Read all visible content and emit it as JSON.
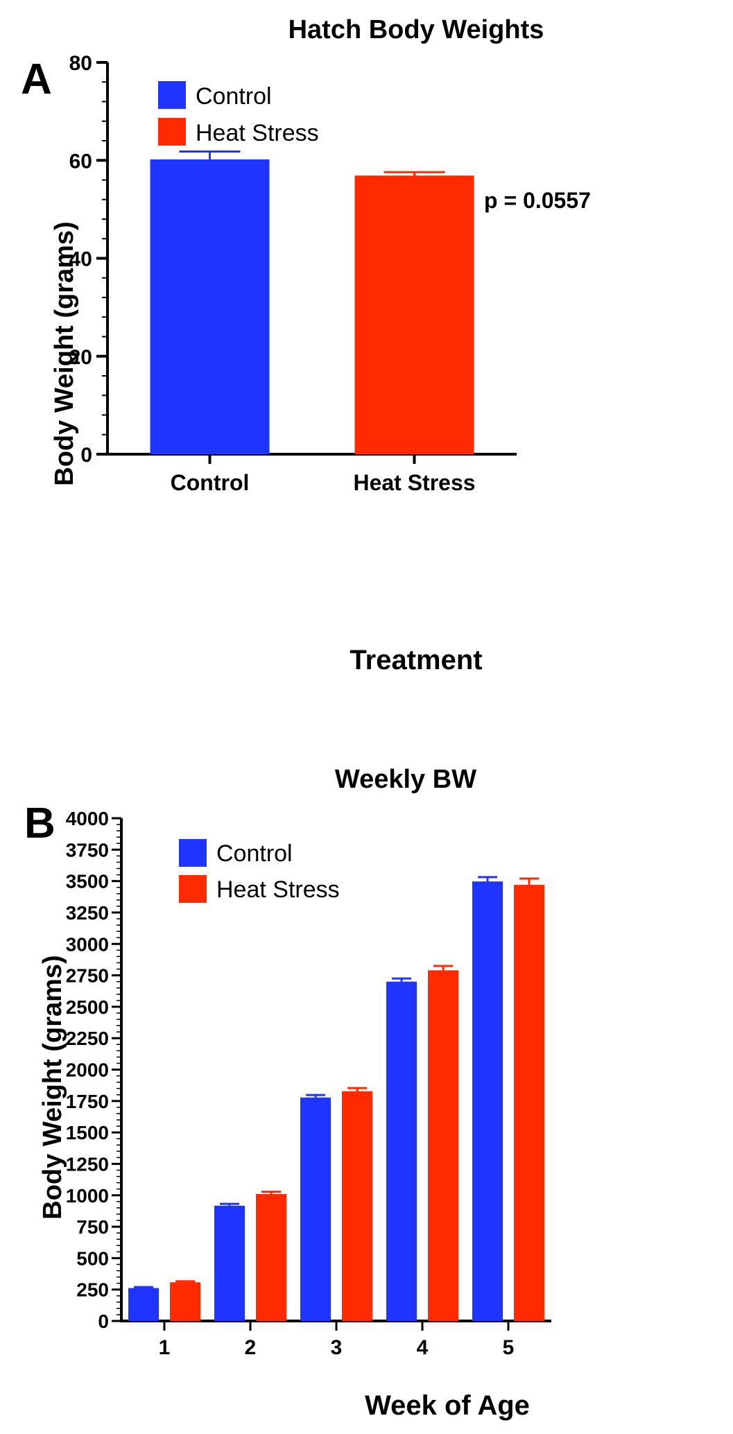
{
  "chart_data": [
    {
      "panel_label": "A",
      "type": "bar",
      "title": "Hatch Body Weights",
      "xlabel": "Treatment",
      "ylabel": "Body Weight (grams)",
      "ylim": [
        0,
        80
      ],
      "yticks": [
        0,
        20,
        40,
        60,
        80
      ],
      "categories": [
        "Control",
        "Heat Stress"
      ],
      "values": [
        60.2,
        56.9
      ],
      "errors": [
        1.6,
        0.7
      ],
      "bar_colors": [
        "#1f35ff",
        "#ff2a00"
      ],
      "annotations": [
        {
          "category": "Heat Stress",
          "text": "p = 0.0557"
        }
      ],
      "legend": {
        "placement": "top-left",
        "entries": [
          "Control",
          "Heat Stress"
        ]
      }
    },
    {
      "panel_label": "B",
      "type": "bar",
      "title": "Weekly BW",
      "xlabel": "Week of Age",
      "ylabel": "Body Weight (grams)",
      "ylim": [
        0,
        4000
      ],
      "yticks": [
        0,
        250,
        500,
        750,
        1000,
        1250,
        1500,
        1750,
        2000,
        2250,
        2500,
        2750,
        3000,
        3250,
        3500,
        3750,
        4000
      ],
      "categories": [
        "1",
        "2",
        "3",
        "4",
        "5"
      ],
      "series": [
        {
          "name": "Control",
          "color": "#1f35ff",
          "values": [
            262,
            917,
            1778,
            2700,
            3497
          ],
          "errors": [
            8,
            15,
            20,
            25,
            35
          ]
        },
        {
          "name": "Heat Stress",
          "color": "#ff2a00",
          "values": [
            308,
            1010,
            1828,
            2790,
            3470
          ],
          "errors": [
            8,
            18,
            25,
            35,
            50
          ]
        }
      ],
      "legend": {
        "placement": "top-left",
        "entries": [
          "Control",
          "Heat Stress"
        ]
      }
    }
  ]
}
